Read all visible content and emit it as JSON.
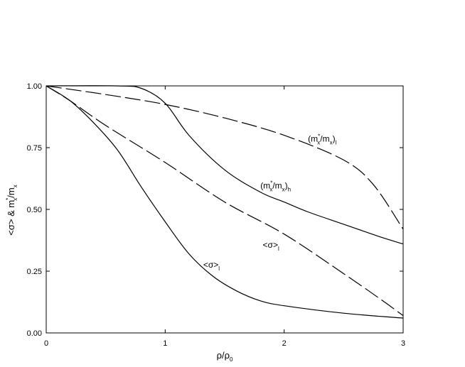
{
  "chart_data": {
    "type": "line",
    "title": "",
    "xlabel": "ρ/ρ",
    "xlabel_sub": "0",
    "ylabel": "<σ> & m",
    "ylabel_sup": "*",
    "ylabel_sub": "x",
    "ylabel_tail": "/m",
    "ylabel_tail_sub": "x",
    "xlim": [
      0,
      3
    ],
    "ylim": [
      0,
      1
    ],
    "x_ticks": [
      0,
      1,
      2,
      3
    ],
    "x_tick_labels": [
      "0",
      "1",
      "2",
      "3"
    ],
    "y_ticks": [
      0,
      0.25,
      0.5,
      0.75,
      1.0
    ],
    "y_tick_labels": [
      "0.00",
      "0.25",
      "0.50",
      "0.75",
      "1.00"
    ],
    "grid": false,
    "series": [
      {
        "key": "mass_l",
        "style": "dashed",
        "x": [
          0,
          0.5,
          1.0,
          1.5,
          2.0,
          2.5,
          2.75,
          3.0
        ],
        "y": [
          1.0,
          0.965,
          0.925,
          0.87,
          0.8,
          0.7,
          0.6,
          0.42
        ]
      },
      {
        "key": "mass_h",
        "style": "solid",
        "x": [
          0,
          0.6,
          0.8,
          1.0,
          1.2,
          1.5,
          1.8,
          2.0,
          2.2,
          2.5,
          2.8,
          3.0
        ],
        "y": [
          1.0,
          1.0,
          0.99,
          0.93,
          0.8,
          0.66,
          0.57,
          0.53,
          0.49,
          0.44,
          0.39,
          0.36
        ]
      },
      {
        "key": "sigma_l",
        "style": "dashed",
        "x": [
          0,
          0.2,
          0.5,
          1.0,
          1.5,
          2.0,
          2.5,
          2.8,
          3.0
        ],
        "y": [
          1.0,
          0.94,
          0.84,
          0.69,
          0.53,
          0.4,
          0.24,
          0.14,
          0.07
        ]
      },
      {
        "key": "sigma_h",
        "style": "solid",
        "x": [
          0,
          0.2,
          0.4,
          0.6,
          0.8,
          1.0,
          1.2,
          1.4,
          1.6,
          1.8,
          2.0,
          2.5,
          3.0
        ],
        "y": [
          1.0,
          0.94,
          0.85,
          0.74,
          0.59,
          0.45,
          0.32,
          0.23,
          0.17,
          0.13,
          0.11,
          0.08,
          0.06
        ]
      }
    ],
    "annotations": [
      {
        "key": "mass_l",
        "main": "(m",
        "sup": "*",
        "sub": "x",
        "mid": "/m",
        "sub2": "x",
        "close": ")",
        "sub3": "l",
        "x": 2.2,
        "y": 0.775
      },
      {
        "key": "mass_h",
        "main": "(m",
        "sup": "*",
        "sub": "x",
        "mid": "/m",
        "sub2": "x",
        "close": ")",
        "sub3": "h",
        "x": 1.8,
        "y": 0.585
      },
      {
        "key": "sigma_l",
        "main": "<σ>",
        "sub": "l",
        "x": 1.82,
        "y": 0.345
      },
      {
        "key": "sigma_h",
        "main": "<σ>",
        "sub": "l",
        "x": 1.32,
        "y": 0.265
      }
    ]
  }
}
